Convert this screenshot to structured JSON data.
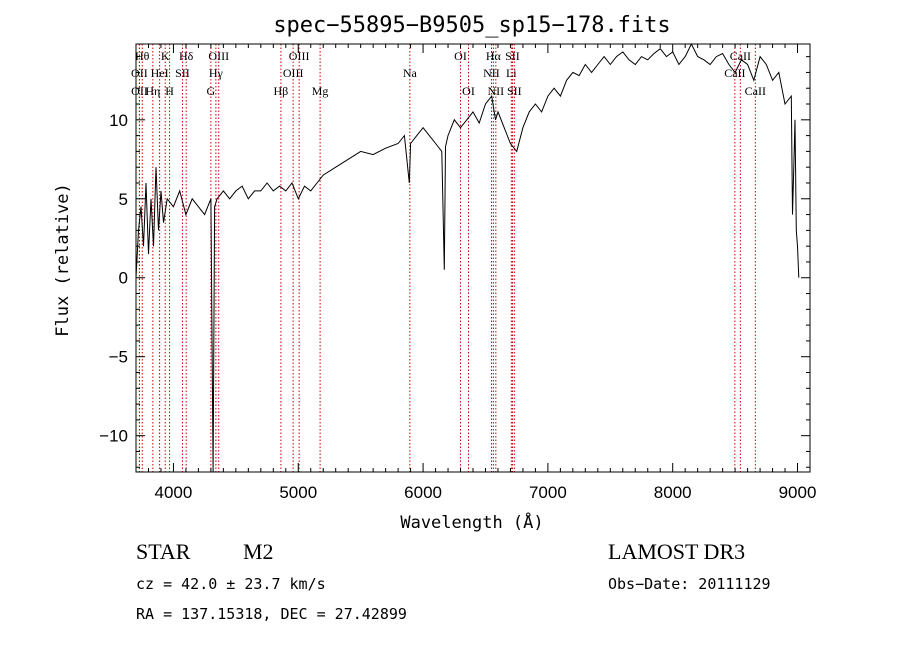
{
  "chart_data": {
    "type": "line",
    "title": "spec−55895−B9505_sp15−178.fits",
    "xlabel": "Wavelength (Å)",
    "ylabel": "Flux (relative)",
    "xlim": [
      3700,
      9100
    ],
    "ylim": [
      -12.3,
      14.8
    ],
    "xticks": [
      4000,
      5000,
      6000,
      7000,
      8000,
      9000
    ],
    "xtick_labels": [
      "4000",
      "5000",
      "6000",
      "7000",
      "8000",
      "9000"
    ],
    "yticks": [
      -10,
      -5,
      0,
      5,
      10
    ],
    "ytick_labels": [
      "−10",
      "−5",
      "0",
      "5",
      "10"
    ],
    "line_color": "#000000",
    "marker_color": "#cc0000",
    "series": [
      {
        "x": [
          3700,
          3720,
          3740,
          3760,
          3780,
          3800,
          3820,
          3840,
          3860,
          3880,
          3900,
          3920,
          3950,
          4000,
          4050,
          4100,
          4150,
          4200,
          4250,
          4300,
          4318,
          4330,
          4350,
          4400,
          4450,
          4500,
          4550,
          4600,
          4650,
          4700,
          4750,
          4800,
          4850,
          4900,
          4950,
          5000,
          5050,
          5100,
          5150,
          5200,
          5300,
          5400,
          5500,
          5600,
          5700,
          5800,
          5850,
          5890,
          5900,
          5950,
          6000,
          6050,
          6100,
          6150,
          6170,
          6180,
          6200,
          6250,
          6300,
          6350,
          6400,
          6450,
          6500,
          6550,
          6580,
          6600,
          6650,
          6700,
          6750,
          6800,
          6850,
          6900,
          6950,
          7000,
          7050,
          7100,
          7150,
          7200,
          7250,
          7300,
          7350,
          7400,
          7450,
          7500,
          7550,
          7600,
          7650,
          7700,
          7750,
          7800,
          7850,
          7900,
          7950,
          8000,
          8050,
          8100,
          8150,
          8200,
          8250,
          8300,
          8350,
          8400,
          8450,
          8500,
          8550,
          8600,
          8650,
          8700,
          8750,
          8800,
          8850,
          8900,
          8950,
          8960,
          8970,
          8980,
          8990,
          9000,
          9010
        ],
        "y": [
          0,
          3,
          4.5,
          2,
          6,
          1.5,
          5,
          2,
          7,
          3,
          5.5,
          3.5,
          5,
          4.5,
          5.5,
          4,
          5,
          4.5,
          4,
          5,
          -12.3,
          4.5,
          5,
          5.5,
          5,
          5.5,
          5.8,
          5,
          5.5,
          5.5,
          6,
          5.5,
          5.8,
          5.5,
          6,
          5,
          5.8,
          5.5,
          6,
          6.5,
          7,
          7.5,
          8,
          7.8,
          8.2,
          8.5,
          9,
          6,
          8.5,
          9,
          9.5,
          9,
          8.5,
          8,
          0.5,
          8.3,
          9,
          10,
          9.5,
          10,
          10.5,
          9.8,
          11,
          11.5,
          10,
          10.5,
          9.5,
          8.5,
          8,
          9.5,
          10.5,
          11,
          10.5,
          11.5,
          12,
          11.5,
          12.5,
          13,
          12.8,
          13.5,
          13,
          13.5,
          14,
          13.5,
          14,
          14.3,
          13.8,
          13.5,
          14,
          13.8,
          14.2,
          14.5,
          14,
          14.3,
          13.5,
          14,
          14.8,
          14,
          13.8,
          13.5,
          14,
          14.2,
          13.5,
          13,
          13.8,
          13.5,
          12.5,
          14,
          13.5,
          12.5,
          13,
          11,
          11.5,
          4,
          7,
          10,
          3,
          2,
          0
        ]
      }
    ],
    "line_markers": [
      {
        "wave": 3750,
        "label": "Hθ",
        "row": 0
      },
      {
        "wave": 3727,
        "label": "OII",
        "row": 1
      },
      {
        "wave": 3728,
        "label": "OII",
        "row": 2
      },
      {
        "wave": 3835,
        "label": "Hη",
        "row": 2
      },
      {
        "wave": 3889,
        "label": "HeI",
        "row": 1
      },
      {
        "wave": 3934,
        "label": "K",
        "row": 0
      },
      {
        "wave": 3969,
        "label": "H",
        "row": 2
      },
      {
        "wave": 4072,
        "label": "SII",
        "row": 1
      },
      {
        "wave": 4102,
        "label": "Hδ",
        "row": 0
      },
      {
        "wave": 4300,
        "label": "G",
        "row": 2
      },
      {
        "wave": 4340,
        "label": "Hγ",
        "row": 1
      },
      {
        "wave": 4363,
        "label": "OIII",
        "row": 0
      },
      {
        "wave": 4861,
        "label": "Hβ",
        "row": 2
      },
      {
        "wave": 4959,
        "label": "OIII",
        "row": 1
      },
      {
        "wave": 5007,
        "label": "OIII",
        "row": 0
      },
      {
        "wave": 5175,
        "label": "Mg",
        "row": 2
      },
      {
        "wave": 5894,
        "label": "Na",
        "row": 1
      },
      {
        "wave": 6300,
        "label": "OI",
        "row": 0
      },
      {
        "wave": 6364,
        "label": "OI",
        "row": 2
      },
      {
        "wave": 6548,
        "label": "NII",
        "row": 1
      },
      {
        "wave": 6563,
        "label": "Hα",
        "row": 0
      },
      {
        "wave": 6583,
        "label": "NII",
        "row": 2
      },
      {
        "wave": 6707,
        "label": "Li",
        "row": 1
      },
      {
        "wave": 6716,
        "label": "SII",
        "row": 0
      },
      {
        "wave": 6731,
        "label": "SII",
        "row": 2
      },
      {
        "wave": 8498,
        "label": "CaII",
        "row": 1
      },
      {
        "wave": 8542,
        "label": "CaII",
        "row": 0
      },
      {
        "wave": 8662,
        "label": "CaII",
        "row": 2
      }
    ]
  },
  "info": {
    "class": "STAR",
    "subclass": "M2",
    "survey": "LAMOST DR3",
    "cz": "cz = 42.0 ± 23.7 km/s",
    "obs_date": "Obs−Date: 20111129",
    "radec": "RA = 137.15318, DEC =  27.42899"
  }
}
